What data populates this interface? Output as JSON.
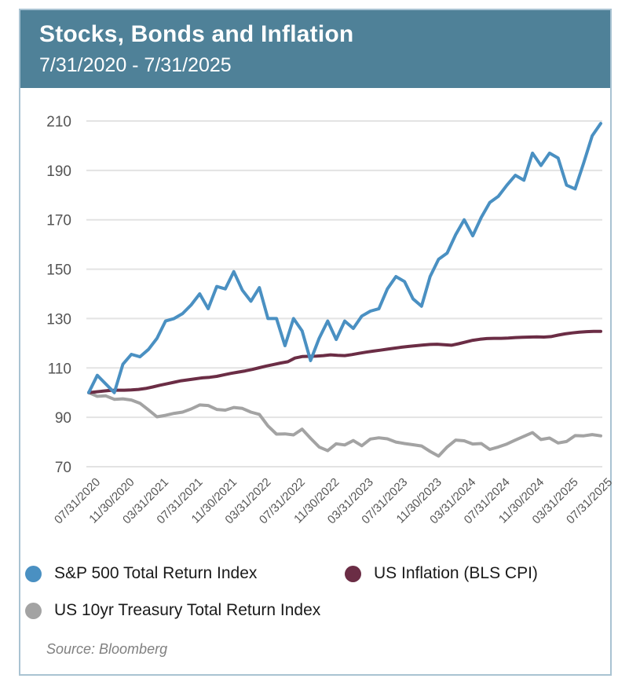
{
  "header": {
    "title": "Stocks, Bonds and Inflation",
    "subtitle": "7/31/2020 - 7/31/2025"
  },
  "source": "Source: Bloomberg",
  "colors": {
    "header_bg": "#4f8198",
    "sp500": "#4a90c2",
    "cpi": "#6b2d45",
    "treasury": "#a3a3a3",
    "grid": "#e3e3e3"
  },
  "chart_data": {
    "type": "line",
    "title": "Stocks, Bonds and Inflation",
    "subtitle": "7/31/2020 - 7/31/2025",
    "xlabel": "",
    "ylabel": "",
    "ylim": [
      70,
      210
    ],
    "yticks": [
      70,
      90,
      110,
      130,
      150,
      170,
      190,
      210
    ],
    "grid": true,
    "legend_position": "bottom",
    "x_tick_labels": [
      "07/31/2020",
      "11/30/2020",
      "03/31/2021",
      "07/31/2021",
      "11/30/2021",
      "03/31/2022",
      "07/31/2022",
      "11/30/2022",
      "03/31/2023",
      "07/31/2023",
      "11/30/2023",
      "03/31/2024",
      "07/31/2024",
      "11/30/2024",
      "03/31/2025",
      "07/31/2025"
    ],
    "x_tick_interval_months": 4,
    "x_start": "07/31/2020",
    "x_end": "07/31/2025",
    "series": [
      {
        "name": "S&P 500 Total Return Index",
        "color": "#4a90c2",
        "values": [
          100,
          107,
          103.5,
          100,
          111.5,
          115.5,
          114.5,
          117.5,
          122,
          129,
          130,
          132,
          135.5,
          140,
          134,
          143,
          142,
          149,
          141.5,
          137,
          142.5,
          130,
          130,
          119,
          130,
          125,
          113,
          122,
          129,
          121.5,
          129,
          126,
          131,
          133,
          134,
          142,
          147,
          145,
          138,
          135,
          147,
          154,
          156.5,
          164,
          170,
          163.5,
          171,
          177,
          179.5,
          184,
          188,
          186,
          197,
          192,
          197,
          195,
          184,
          182.5,
          193,
          204,
          209
        ]
      },
      {
        "name": "US Inflation (BLS CPI)",
        "color": "#6b2d45",
        "values": [
          100,
          100.3,
          100.6,
          100.9,
          101,
          101,
          101.1,
          101.3,
          101.7,
          102.3,
          103,
          103.6,
          104.2,
          104.8,
          105.2,
          105.6,
          106,
          106.2,
          106.6,
          107.2,
          107.8,
          108.3,
          108.8,
          109.4,
          110.1,
          110.8,
          111.4,
          112,
          112.5,
          114,
          114.6,
          114.7,
          114.8,
          115,
          115.3,
          115.1,
          115,
          115.4,
          115.9,
          116.4,
          116.8,
          117.2,
          117.6,
          118,
          118.4,
          118.7,
          119,
          119.3,
          119.5,
          119.6,
          119.4,
          119.2,
          119.8,
          120.5,
          121.2,
          121.6,
          121.9,
          122,
          122,
          122.1,
          122.3,
          122.4,
          122.5,
          122.6,
          122.5,
          122.7,
          123.3,
          123.8,
          124.2,
          124.5,
          124.7,
          124.8,
          124.8
        ]
      },
      {
        "name": "US 10yr Treasury Total Return Index",
        "color": "#a3a3a3",
        "values": [
          100,
          98.5,
          98.7,
          97.3,
          97.5,
          97,
          95.7,
          93,
          90.2,
          90.8,
          91.6,
          92.1,
          93.4,
          95,
          94.8,
          93.2,
          92.9,
          94,
          93.6,
          92.1,
          91.2,
          86.5,
          83.2,
          83.3,
          82.9,
          85.2,
          81.5,
          78,
          76.5,
          79.3,
          78.8,
          80.6,
          78.5,
          81.2,
          81.7,
          81.3,
          80,
          79.4,
          78.9,
          78.4,
          76.2,
          74.3,
          78,
          80.8,
          80.5,
          79.2,
          79.4,
          77,
          78,
          79.2,
          80.8,
          82.3,
          83.8,
          81,
          81.6,
          79.6,
          80.2,
          82.6,
          82.5,
          83,
          82.5
        ]
      }
    ]
  },
  "legend": [
    {
      "label": "S&P 500 Total Return Index",
      "color": "#4a90c2"
    },
    {
      "label": "US Inflation (BLS CPI)",
      "color": "#6b2d45"
    },
    {
      "label": "US 10yr Treasury Total Return Index",
      "color": "#a3a3a3"
    }
  ]
}
